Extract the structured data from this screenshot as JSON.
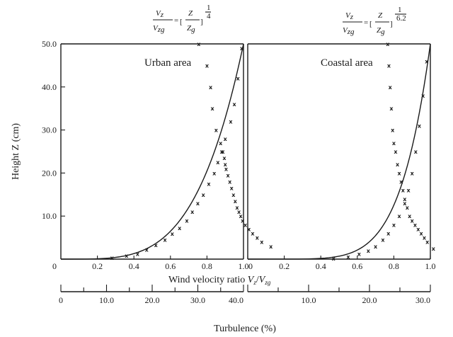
{
  "chart_data": [
    {
      "type": "scatter",
      "panel": "left",
      "annotation": "Urban area",
      "formula": {
        "lhs_num": "V",
        "lhs_num_sub": "z",
        "lhs_den": "V",
        "lhs_den_sub": "zg",
        "eq": "=",
        "rhs_num": "Z",
        "rhs_den": "Z",
        "rhs_den_sub": "g",
        "exponent_num": "1",
        "exponent_den": "4"
      },
      "ylabel": "Height Z  (cm)",
      "ylim": [
        0,
        50
      ],
      "y_ticks": [
        "10.0",
        "20.0",
        "30.0",
        "40.0",
        "50.0"
      ],
      "y_tick_values": [
        10,
        20,
        30,
        40,
        50
      ],
      "y_origin_label": "0",
      "x_ticks": [
        "0.2",
        "0.4",
        "0.6",
        "0.8",
        "1.0"
      ],
      "x_tick_values": [
        0.2,
        0.4,
        0.6,
        0.8,
        1.0
      ],
      "xlim": [
        0,
        1.0
      ],
      "turbulence_ticks": [
        "0",
        "10.0",
        "20.0",
        "30.0",
        "40.0"
      ],
      "turbulence_tick_values": [
        0,
        10,
        20,
        30,
        40
      ],
      "turbulence_lim": [
        0,
        40
      ],
      "series": [
        {
          "kind": "velocity",
          "x": [
            0.28,
            0.36,
            0.42,
            0.47,
            0.52,
            0.57,
            0.61,
            0.65,
            0.69,
            0.72,
            0.75,
            0.78,
            0.81,
            0.84,
            0.86,
            0.88,
            0.9,
            0.93,
            0.95,
            0.97,
            0.99
          ],
          "y": [
            0.3,
            0.8,
            1.2,
            2.2,
            3.3,
            4.5,
            5.9,
            7.2,
            9.0,
            11.0,
            13.0,
            15.0,
            17.5,
            20.0,
            22.5,
            25.0,
            28.0,
            32.0,
            36.0,
            42.0,
            49.0
          ]
        },
        {
          "kind": "turbulence",
          "x": [
            30.2,
            32.0,
            32.8,
            33.2,
            34.0,
            35.0,
            35.5,
            35.8,
            36.0,
            36.2,
            36.6,
            37.0,
            37.4,
            37.8,
            38.2,
            38.6,
            39.0,
            39.4,
            39.8,
            40.4,
            41.2,
            42.0,
            43.0,
            44.0,
            46.0
          ],
          "y": [
            50.0,
            45.0,
            40.0,
            35.0,
            30.0,
            27.0,
            25.0,
            23.5,
            22.0,
            21.0,
            19.5,
            18.0,
            16.5,
            15.0,
            13.5,
            12.0,
            11.0,
            10.0,
            9.0,
            8.0,
            7.0,
            6.0,
            5.0,
            4.0,
            3.0
          ]
        }
      ],
      "curve": {
        "exponent": 4
      }
    },
    {
      "type": "scatter",
      "panel": "right",
      "annotation": "Coastal area",
      "formula": {
        "lhs_num": "V",
        "lhs_num_sub": "z",
        "lhs_den": "V",
        "lhs_den_sub": "zg",
        "eq": "=",
        "rhs_num": "Z",
        "rhs_den": "Z",
        "rhs_den_sub": "g",
        "exponent_num": "1",
        "exponent_den": "6.2"
      },
      "x_ticks": [
        "0",
        "0.2",
        "0.4",
        "0.6",
        "0.8",
        "1.0"
      ],
      "x_tick_values": [
        0,
        0.2,
        0.4,
        0.6,
        0.8,
        1.0
      ],
      "xlim": [
        0,
        1.0
      ],
      "ylim": [
        0,
        50
      ],
      "turbulence_ticks": [
        "10.0",
        "20.0",
        "30.0"
      ],
      "turbulence_tick_values": [
        10,
        20,
        30
      ],
      "turbulence_lim": [
        0,
        30
      ],
      "series": [
        {
          "kind": "velocity",
          "x": [
            0.47,
            0.55,
            0.61,
            0.66,
            0.7,
            0.74,
            0.77,
            0.8,
            0.83,
            0.86,
            0.88,
            0.9,
            0.92,
            0.94,
            0.96,
            0.98
          ],
          "y": [
            0.2,
            0.6,
            1.2,
            2.0,
            3.0,
            4.5,
            6.0,
            8.0,
            10.0,
            13.0,
            16.0,
            20.0,
            25.0,
            31.0,
            38.0,
            46.0
          ]
        },
        {
          "kind": "turbulence",
          "x": [
            23.0,
            23.2,
            23.4,
            23.6,
            23.8,
            24.0,
            24.3,
            24.6,
            24.9,
            25.2,
            25.5,
            25.8,
            26.2,
            26.6,
            27.0,
            27.5,
            28.0,
            28.5,
            29.0,
            29.5,
            30.5
          ],
          "y": [
            50.0,
            45.0,
            40.0,
            35.0,
            30.0,
            27.0,
            25.0,
            22.0,
            20.0,
            18.0,
            16.0,
            14.0,
            12.0,
            10.0,
            9.0,
            8.0,
            7.0,
            6.0,
            5.0,
            4.0,
            2.5
          ]
        }
      ],
      "curve": {
        "exponent": 6.2
      }
    }
  ],
  "xlabel": {
    "text": "Wind velocity ratio ",
    "var_main": "V",
    "var_main_sub": "z",
    "slash": "/",
    "var_ref": "V",
    "var_ref_sub": "zg"
  },
  "turbulence_label": "Turbulence (%)",
  "marker_glyph": "x"
}
